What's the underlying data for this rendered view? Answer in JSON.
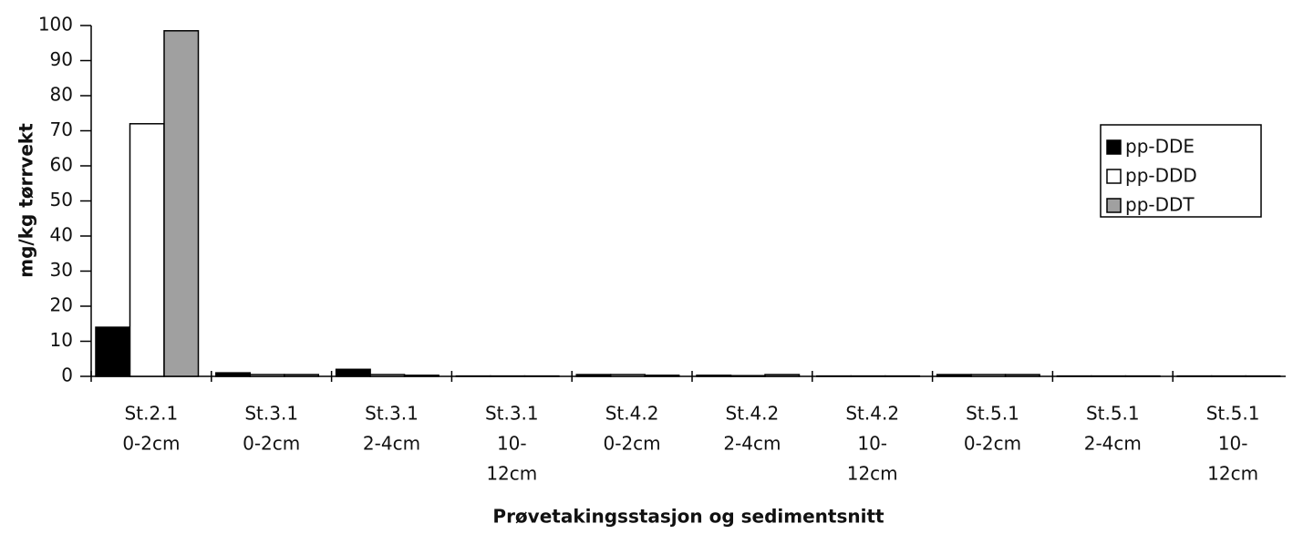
{
  "chart_data": {
    "type": "bar",
    "y_label": "mg/kg tørrvekt",
    "x_label": "Prøvetakingsstasjon og sedimentsnitt",
    "categories": [
      [
        "St.2.1",
        "0-2cm"
      ],
      [
        "St.3.1",
        "0-2cm"
      ],
      [
        "St.3.1",
        "2-4cm"
      ],
      [
        "St.3.1",
        "10-",
        "12cm"
      ],
      [
        "St.4.2",
        "0-2cm"
      ],
      [
        "St.4.2",
        "2-4cm"
      ],
      [
        "St.4.2",
        "10-",
        "12cm"
      ],
      [
        "St.5.1",
        "0-2cm"
      ],
      [
        "St.5.1",
        "2-4cm"
      ],
      [
        "St.5.1",
        "10-",
        "12cm"
      ]
    ],
    "series": [
      {
        "name": "pp-DDE",
        "color": "#000000",
        "values": [
          14,
          1,
          2,
          0.1,
          0.5,
          0.3,
          0.1,
          0.5,
          0.1,
          0.1
        ]
      },
      {
        "name": "pp-DDD",
        "color": "#ffffff",
        "values": [
          72,
          0.5,
          0.5,
          0.1,
          0.5,
          0.2,
          0.1,
          0.5,
          0.1,
          0.1
        ]
      },
      {
        "name": "pp-DDT",
        "color": "#a0a0a0",
        "values": [
          98.5,
          0.5,
          0.3,
          0.1,
          0.3,
          0.5,
          0.1,
          0.5,
          0.1,
          0.1
        ]
      }
    ],
    "ylim": [
      0,
      100
    ],
    "yticks": [
      0,
      10,
      20,
      30,
      40,
      50,
      60,
      70,
      80,
      90,
      100
    ],
    "legend": "right"
  }
}
